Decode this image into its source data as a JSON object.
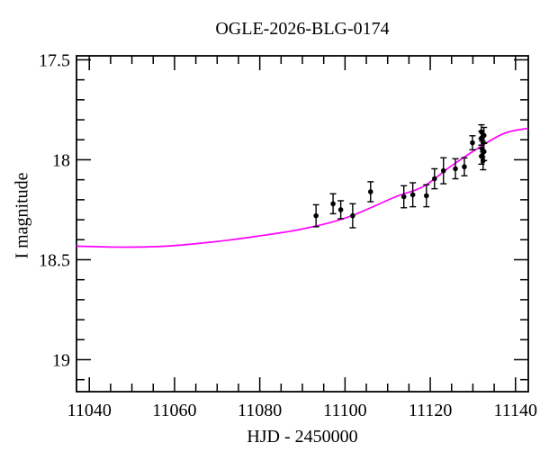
{
  "title": "OGLE-2026-BLG-0174",
  "colors": {
    "background": "#ffffff",
    "frame": "#000000",
    "model_curve": "#ff00ff",
    "data_points": "#000000",
    "text": "#000000"
  },
  "chart_data": {
    "type": "scatter",
    "title": "OGLE-2026-BLG-0174",
    "xlabel": "HJD - 2450000",
    "ylabel": "I magnitude",
    "xlim": [
      11037,
      11143
    ],
    "ylim": [
      19.16,
      17.48
    ],
    "y_inverted": true,
    "grid": false,
    "legend": null,
    "x_major_ticks": [
      11040,
      11060,
      11080,
      11100,
      11120,
      11140
    ],
    "x_tick_labels": [
      "11040",
      "11060",
      "11080",
      "11100",
      "11120",
      "11140"
    ],
    "x_minor_step": 5,
    "y_major_ticks": [
      17.5,
      18,
      18.5,
      19
    ],
    "y_tick_labels": [
      "17.5",
      "18",
      "18.5",
      "19"
    ],
    "y_minor_step": 0.1,
    "series": [
      {
        "name": "model-fit-curve",
        "type": "line",
        "color": "#ff00ff",
        "x": [
          11037.0,
          11047.6,
          11058.1,
          11068.7,
          11079.2,
          11089.8,
          11100.3,
          11111.9,
          11118.3,
          11124.6,
          11130.9,
          11137.2,
          11143.0
        ],
        "y": [
          18.432,
          18.437,
          18.432,
          18.412,
          18.383,
          18.347,
          18.29,
          18.185,
          18.135,
          18.036,
          17.946,
          17.869,
          17.842
        ]
      },
      {
        "name": "photometry-points",
        "type": "scatter-errorbar",
        "color": "#000000",
        "points": [
          {
            "x": 11093.2,
            "mag": 18.28,
            "err": 0.055
          },
          {
            "x": 11097.2,
            "mag": 18.22,
            "err": 0.05
          },
          {
            "x": 11099.0,
            "mag": 18.25,
            "err": 0.045
          },
          {
            "x": 11101.8,
            "mag": 18.28,
            "err": 0.06
          },
          {
            "x": 11106.0,
            "mag": 18.16,
            "err": 0.05
          },
          {
            "x": 11113.8,
            "mag": 18.185,
            "err": 0.055
          },
          {
            "x": 11115.9,
            "mag": 18.175,
            "err": 0.06
          },
          {
            "x": 11119.1,
            "mag": 18.18,
            "err": 0.055
          },
          {
            "x": 11121.0,
            "mag": 18.095,
            "err": 0.05
          },
          {
            "x": 11123.1,
            "mag": 18.055,
            "err": 0.065
          },
          {
            "x": 11125.9,
            "mag": 18.045,
            "err": 0.05
          },
          {
            "x": 11128.0,
            "mag": 18.035,
            "err": 0.045
          },
          {
            "x": 11129.9,
            "mag": 17.915,
            "err": 0.035
          },
          {
            "x": 11132.0,
            "mag": 17.86,
            "err": 0.035
          },
          {
            "x": 11132.6,
            "mag": 17.878,
            "err": 0.04
          },
          {
            "x": 11132.0,
            "mag": 17.892,
            "err": 0.035
          },
          {
            "x": 11132.2,
            "mag": 17.946,
            "err": 0.04
          },
          {
            "x": 11132.6,
            "mag": 17.959,
            "err": 0.045
          },
          {
            "x": 11132.0,
            "mag": 17.982,
            "err": 0.04
          },
          {
            "x": 11132.4,
            "mag": 18.005,
            "err": 0.045
          }
        ]
      }
    ]
  }
}
